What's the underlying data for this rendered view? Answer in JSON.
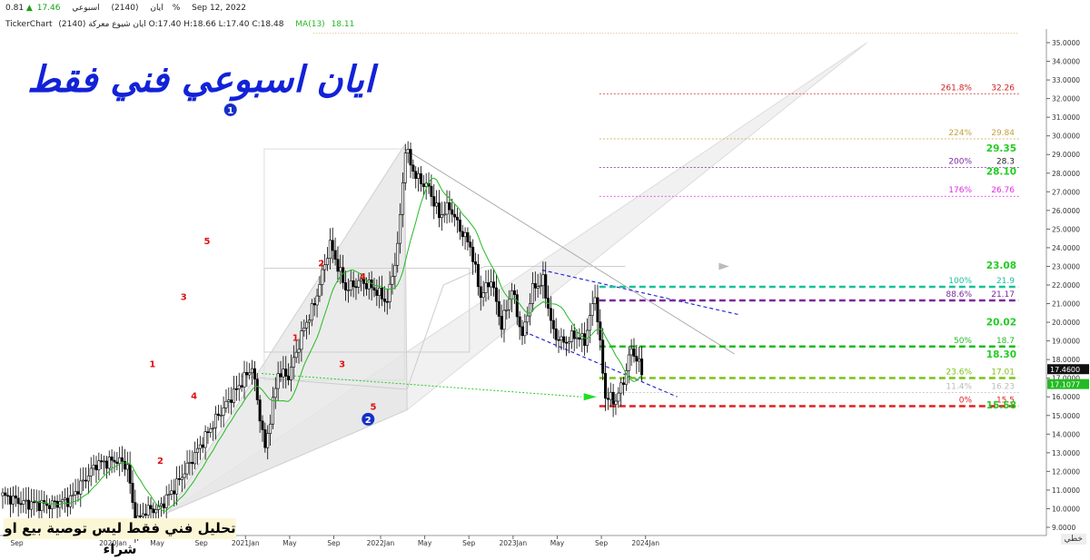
{
  "header": {
    "name_en": "ايان",
    "ticker_code": "(2140)",
    "period": "اسبوعي",
    "last_price": "17.46",
    "change_arrow": "▲",
    "change_pct": "0.81%",
    "date": "Sep 12, 2022",
    "source": "TickerChart",
    "ohlc": "ايان شيوع معركة (2140) O:17.40 H:18.66 L:17.40 C:18.48",
    "ma_label": "MA(13)",
    "ma_value": "18.11"
  },
  "annotation_title": "ايان اسبوعي فني فقط",
  "disclaimer": "تحليل فني فقط ليس توصية بيع او شراء",
  "corner_button": "خطي",
  "colors": {
    "candle_up": "#2a2a2a",
    "candle_down": "#000000",
    "ma_line": "#22bb22",
    "wave_count": "#e01010",
    "pivot_circle": "#1530c8",
    "channel_blue": "#2a2ad0",
    "fib_0": "#e02020",
    "fib_11": "#bbbbbb",
    "fib_23": "#7cc21a",
    "fib_50": "#22bb22",
    "fib_88": "#7a2a9e",
    "fib_100": "#1abf9e",
    "fib_176": "#e12ee1",
    "fib_200": "#7a2a9e",
    "fib_224": "#c8a040",
    "fib_261": "#d02020"
  },
  "chart_data": {
    "type": "candlestick",
    "x_ticks": [
      "Sep",
      "2020Jan",
      "May",
      "Sep",
      "2021Jan",
      "May",
      "Sep",
      "2022Jan",
      "May",
      "Sep",
      "2023Jan",
      "May",
      "Sep",
      "2024Jan"
    ],
    "y_ticks": [
      "35.0000",
      "34.0000",
      "33.0000",
      "32.0000",
      "31.0000",
      "30.0000",
      "29.0000",
      "28.0000",
      "27.0000",
      "26.0000",
      "25.0000",
      "24.0000",
      "23.0000",
      "22.0000",
      "21.0000",
      "20.0000",
      "19.0000",
      "18.0000",
      "17.0000",
      "16.0000",
      "15.0000",
      "14.0000",
      "13.0000",
      "12.0000",
      "11.0000",
      "10.0000",
      "9.0000"
    ],
    "ylim": [
      8.7,
      35.6
    ],
    "current_price_label": "17.4600",
    "ma_price_label": "17.1077",
    "fib_levels": [
      {
        "pct": "0%",
        "value": "15.5",
        "price": 15.5,
        "color_key": "fib_0"
      },
      {
        "pct": "11.4%",
        "value": "16.23",
        "price": 16.23,
        "color_key": "fib_11"
      },
      {
        "pct": "23.6%",
        "value": "17.01",
        "price": 17.01,
        "color_key": "fib_23"
      },
      {
        "pct": "50%",
        "value": "18.7",
        "price": 18.7,
        "color_key": "fib_50"
      },
      {
        "pct": "88.6%",
        "value": "21.17",
        "price": 21.17,
        "color_key": "fib_88"
      },
      {
        "pct": "100%",
        "value": "21.9",
        "price": 21.9,
        "color_key": "fib_100"
      },
      {
        "pct": "176%",
        "value": "26.76",
        "price": 26.76,
        "color_key": "fib_176"
      },
      {
        "pct": "200%",
        "value": "28.3",
        "price": 28.3,
        "color_key": "fib_200"
      },
      {
        "pct": "224%",
        "value": "29.84",
        "price": 29.84,
        "color_key": "fib_224"
      },
      {
        "pct": "261.8%",
        "value": "32.26",
        "price": 32.26,
        "color_key": "fib_261"
      }
    ],
    "targets": [
      {
        "label": "29.35",
        "price": 29.35
      },
      {
        "label": "28.10",
        "price": 28.1
      },
      {
        "label": "23.08",
        "price": 23.08
      },
      {
        "label": "20.02",
        "price": 20.02
      },
      {
        "label": "18.30",
        "price": 18.3
      },
      {
        "label": "15.58",
        "price": 15.58
      }
    ],
    "wave_labels": [
      {
        "text": "1",
        "week": 58,
        "price": 17.6
      },
      {
        "text": "2",
        "week": 61,
        "price": 12.4
      },
      {
        "text": "3",
        "week": 70,
        "price": 21.2
      },
      {
        "text": "4",
        "week": 74,
        "price": 15.9
      },
      {
        "text": "5",
        "week": 79,
        "price": 24.2
      },
      {
        "text": "1",
        "week": 113,
        "price": 19.0
      },
      {
        "text": "2",
        "week": 123,
        "price": 23.0
      },
      {
        "text": "3",
        "week": 131,
        "price": 17.6
      },
      {
        "text": "4",
        "week": 139,
        "price": 22.3
      },
      {
        "text": "5",
        "week": 143,
        "price": 15.3
      }
    ],
    "pivots": [
      {
        "text": "1",
        "week": 88,
        "price": 31.4
      },
      {
        "text": "2",
        "week": 141,
        "price": 14.8
      }
    ],
    "weeks_visible": 246,
    "week_start_index_label": "Sep"
  }
}
